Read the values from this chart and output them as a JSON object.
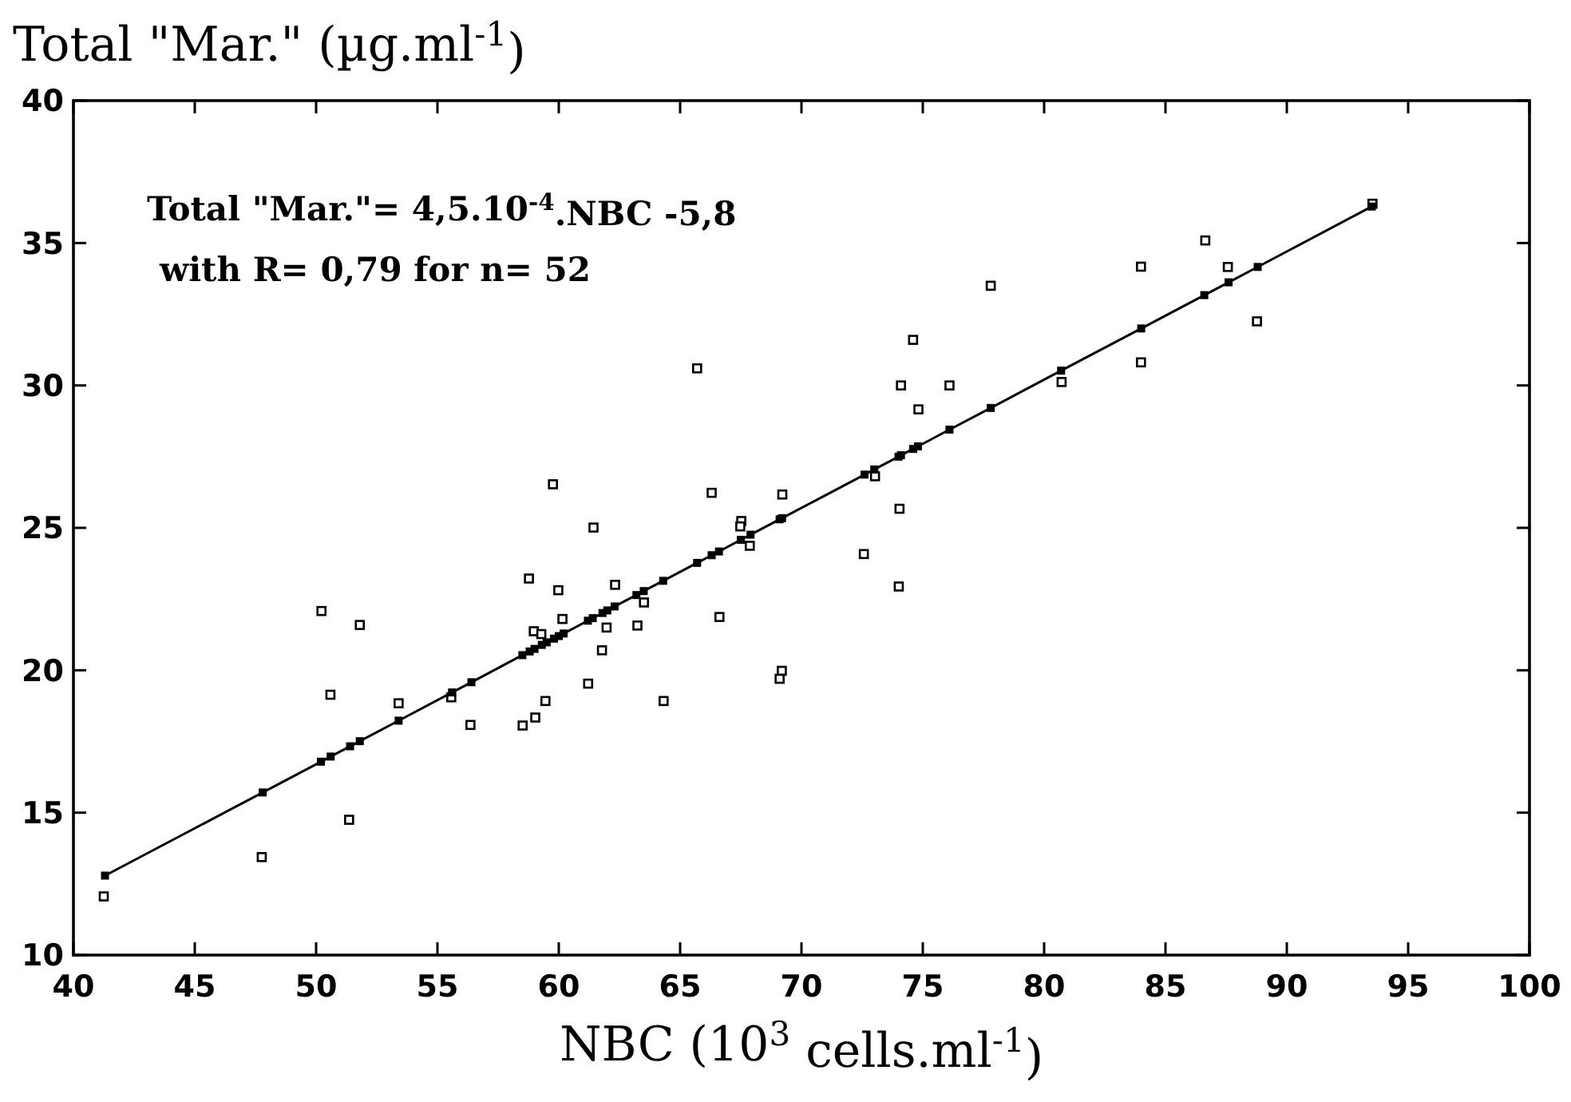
{
  "chart_data": {
    "type": "scatter",
    "ylabel": "Total \"Mar.\" (µg.ml$^{-1}$)",
    "xlabel": "NBC (10$^{3}$ cells.ml$^{-1}$)",
    "xlim": [
      40,
      100
    ],
    "xticks": [
      40,
      45,
      50,
      55,
      60,
      65,
      70,
      75,
      80,
      85,
      90,
      95,
      100
    ],
    "ylim": [
      10,
      40
    ],
    "yticks": [
      10,
      15,
      20,
      25,
      30,
      35,
      40
    ],
    "grid": false,
    "annotations": [
      "Total \"Mar.\"= 4,5.10$^{-4}$.NBC -5,8",
      "with R= 0,79 for n= 52"
    ],
    "series": [
      {
        "color": "#000000",
        "marker": "square",
        "x": [
          41.25,
          47.76,
          50.22,
          51.8,
          50.59,
          53.4,
          51.36,
          55.57,
          56.36,
          59.76,
          66.3,
          69.21,
          61.43,
          58.77,
          59.98,
          62.32,
          67.52,
          67.48,
          67.87,
          63.51,
          60.15,
          58.97,
          59.28,
          61.97,
          63.24,
          66.62,
          61.78,
          61.21,
          64.32,
          59.45,
          59.03,
          58.51,
          69.19,
          69.1,
          74.82,
          73.03,
          74.04,
          72.57,
          74.01,
          93.53,
          86.64,
          83.99,
          87.57,
          88.77,
          83.99,
          80.72,
          65.7,
          77.8,
          74.6,
          74.1,
          76.1
        ],
        "values": [
          12.06,
          13.44,
          22.08,
          21.59,
          19.14,
          18.84,
          14.75,
          19.05,
          18.08,
          26.53,
          26.23,
          26.17,
          25.01,
          23.22,
          22.81,
          23.0,
          25.24,
          25.05,
          24.37,
          22.38,
          21.8,
          21.37,
          21.27,
          21.5,
          21.57,
          21.87,
          20.7,
          19.53,
          18.92,
          18.92,
          18.34,
          18.06,
          19.98,
          19.7,
          29.16,
          26.81,
          25.67,
          24.08,
          22.94,
          36.38,
          35.09,
          34.17,
          34.16,
          32.25,
          30.81,
          30.12,
          30.6,
          33.5,
          31.6,
          30.0,
          30.0
        ]
      },
      {
        "type": "line",
        "color": "#000000",
        "marker": "square",
        "x": [
          41.3,
          47.8,
          50.2,
          50.6,
          51.4,
          51.8,
          53.4,
          55.6,
          56.4,
          58.5,
          58.8,
          59.0,
          59.3,
          59.5,
          59.8,
          60.0,
          60.2,
          61.2,
          61.4,
          61.8,
          62.0,
          62.3,
          63.2,
          63.5,
          64.3,
          65.7,
          66.3,
          66.6,
          67.5,
          67.9,
          69.1,
          69.2,
          72.6,
          73.0,
          74.0,
          74.1,
          74.6,
          74.8,
          76.1,
          77.8,
          80.7,
          84.0,
          86.6,
          87.6,
          88.8,
          93.5
        ],
        "values": [
          12.79,
          15.71,
          16.79,
          16.97,
          17.33,
          17.51,
          18.23,
          19.22,
          19.58,
          20.53,
          20.66,
          20.75,
          20.89,
          20.98,
          21.11,
          21.2,
          21.29,
          21.74,
          21.83,
          22.01,
          22.1,
          22.24,
          22.64,
          22.78,
          23.14,
          23.77,
          24.04,
          24.17,
          24.58,
          24.76,
          25.3,
          25.34,
          26.87,
          27.05,
          27.5,
          27.55,
          27.77,
          27.86,
          28.45,
          29.21,
          30.52,
          32.0,
          33.17,
          33.62,
          34.16,
          36.28
        ]
      }
    ]
  }
}
